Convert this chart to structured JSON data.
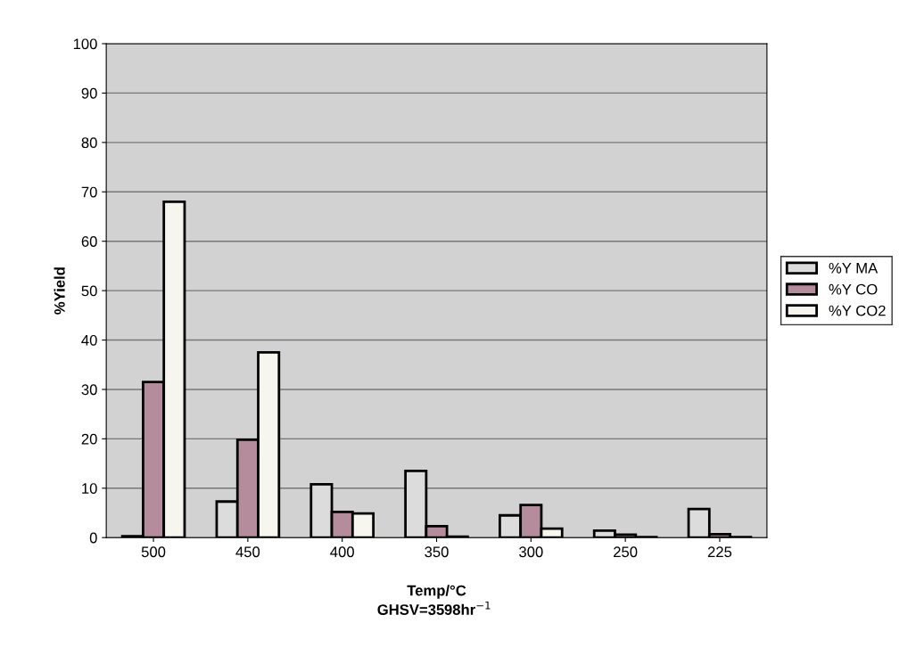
{
  "chart_data": {
    "type": "bar",
    "xlabel": "Temp/°C",
    "ylabel": "%Yield",
    "annotations": [
      "GHSV=3598hr$^{−1}$"
    ],
    "categories": [
      "500",
      "450",
      "400",
      "350",
      "300",
      "250",
      "225"
    ],
    "series": [
      {
        "name": "%Y MA",
        "color": "#dcdcdc",
        "values": [
          0.3,
          7.3,
          10.8,
          13.5,
          4.5,
          1.4,
          5.8
        ]
      },
      {
        "name": "%Y CO",
        "color": "#b48c9c",
        "values": [
          31.5,
          19.8,
          5.2,
          2.3,
          6.6,
          0.6,
          0.7
        ]
      },
      {
        "name": "%Y CO2",
        "color": "#f6f6ee",
        "values": [
          68,
          37.5,
          4.9,
          0.2,
          1.8,
          0.1,
          0.1
        ]
      }
    ],
    "ylim": [
      0,
      100
    ],
    "yticks": [
      0,
      10,
      20,
      30,
      40,
      50,
      60,
      70,
      80,
      90,
      100
    ],
    "grid": "y",
    "legend": "right"
  }
}
